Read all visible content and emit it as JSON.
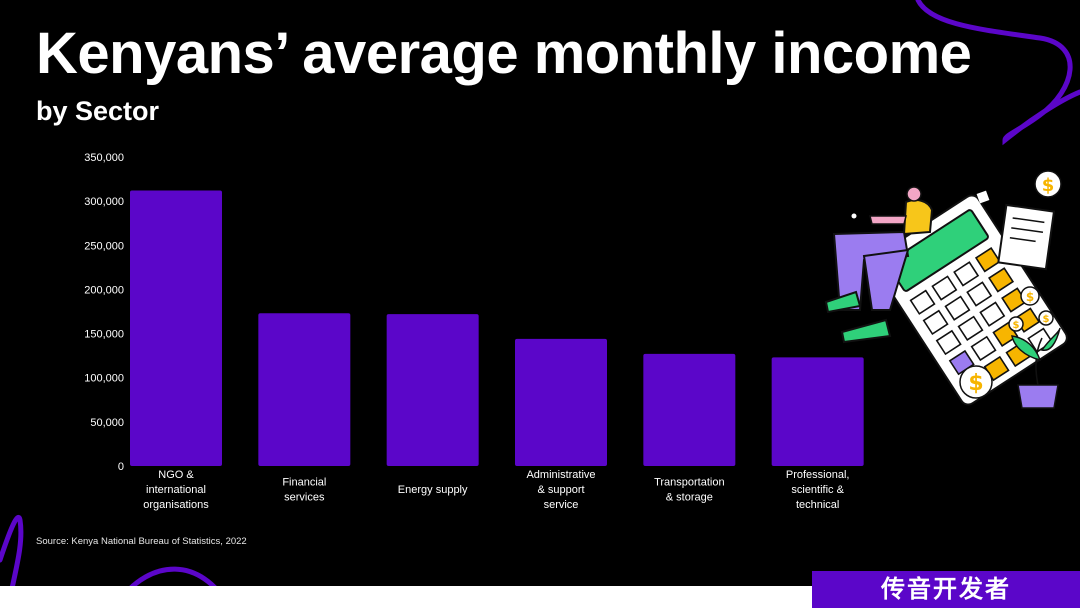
{
  "header": {
    "title": "Kenyans’ average monthly income",
    "subtitle": "by Sector"
  },
  "chart_data": {
    "type": "bar",
    "title": "Kenyans’ average monthly income",
    "subtitle": "by Sector",
    "xlabel": "",
    "ylabel": "",
    "ylim": [
      0,
      350000
    ],
    "yticks": [
      0,
      50000,
      100000,
      150000,
      200000,
      250000,
      300000,
      350000
    ],
    "ytick_labels": [
      "0",
      "50,000",
      "100,000",
      "150,000",
      "200,000",
      "250,000",
      "300,000",
      "350,000"
    ],
    "categories": [
      [
        "NGO &",
        "international",
        "organisations"
      ],
      [
        "Financial",
        "services"
      ],
      [
        "Energy supply"
      ],
      [
        "Administrative",
        "& support",
        "service"
      ],
      [
        "Transportation",
        "& storage"
      ],
      [
        "Professional,",
        "scientific &",
        "technical"
      ]
    ],
    "values": [
      312000,
      173000,
      172000,
      144000,
      127000,
      123000
    ],
    "bar_color": "#5b06c9",
    "grid": false,
    "legend": false
  },
  "source": "Source: Kenya National Bureau of Statistics, 2022",
  "watermark": "传音开发者",
  "colors": {
    "background": "#000000",
    "accent": "#5b06c9",
    "text": "#ffffff"
  }
}
